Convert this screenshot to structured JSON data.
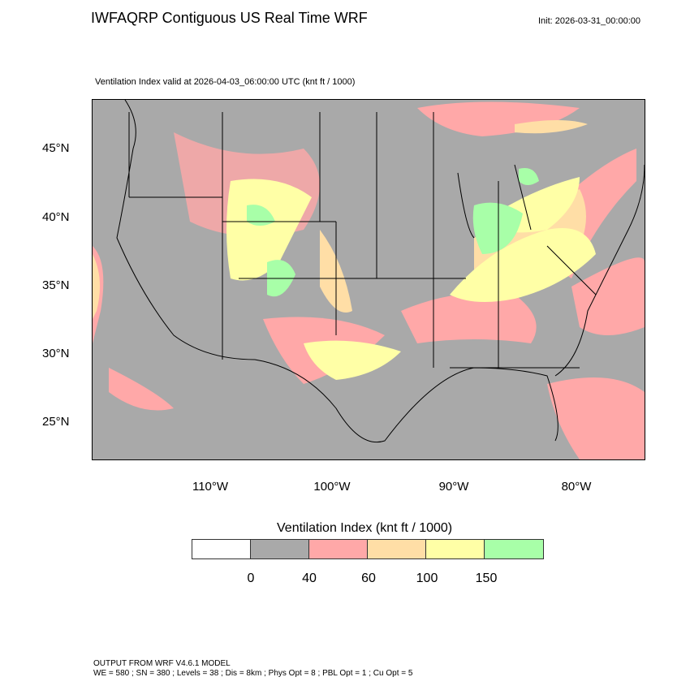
{
  "header": {
    "title": "IWFAQRP Contiguous US Real Time WRF",
    "init": "Init: 2026-03-31_00:00:00",
    "subtitle": "Ventilation Index valid at 2026-04-03_06:00:00 UTC   (knt ft / 1000)"
  },
  "axes": {
    "lat_labels": [
      "45°N",
      "40°N",
      "35°N",
      "30°N",
      "25°N"
    ],
    "lon_labels": [
      "110°W",
      "100°W",
      "90°W",
      "80°W"
    ]
  },
  "colorbar": {
    "title": "Ventilation Index  (knt ft / 1000)",
    "colors": [
      "#ffffff",
      "#a9a9a9",
      "#ffa8a8",
      "#ffdea6",
      "#ffffa6",
      "#a8ffa8"
    ],
    "labels": [
      "0",
      "40",
      "60",
      "100",
      "150"
    ]
  },
  "footer": {
    "line1": "OUTPUT FROM WRF V4.6.1 MODEL",
    "line2": "WE = 580 ; SN = 380 ; Levels = 38 ; Dis = 8km ; Phys Opt = 8 ; PBL Opt = 1 ; Cu Opt = 5"
  }
}
